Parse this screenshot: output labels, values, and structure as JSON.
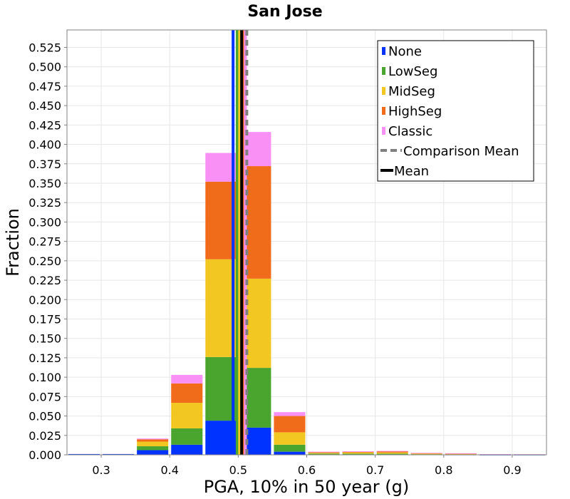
{
  "chart_data": {
    "type": "bar",
    "stacked": true,
    "title": "San Jose",
    "xlabel": "PGA, 10% in 50 year (g)",
    "ylabel": "Fraction",
    "xlim": [
      0.25,
      0.95
    ],
    "ylim": [
      0,
      0.5475
    ],
    "xticks": [
      "0.3",
      "0.4",
      "0.5",
      "0.6",
      "0.7",
      "0.8",
      "0.9"
    ],
    "yticks": [
      "0.000",
      "0.025",
      "0.050",
      "0.075",
      "0.100",
      "0.125",
      "0.150",
      "0.175",
      "0.200",
      "0.225",
      "0.250",
      "0.275",
      "0.300",
      "0.325",
      "0.350",
      "0.375",
      "0.400",
      "0.425",
      "0.450",
      "0.475",
      "0.500",
      "0.525"
    ],
    "grid": true,
    "legend_position": "top-right",
    "bin_width": 0.05,
    "bin_centers": [
      0.275,
      0.325,
      0.375,
      0.425,
      0.475,
      0.525,
      0.575,
      0.625,
      0.675,
      0.725,
      0.775,
      0.825,
      0.875,
      0.925
    ],
    "series": [
      {
        "name": "None",
        "color": "#0033ff",
        "values": [
          0.001,
          0.001,
          0.006,
          0.013,
          0.044,
          0.035,
          0.004,
          0.0005,
          0.0005,
          0.0005,
          0.0003,
          0.0002,
          0.0001,
          0.0001
        ]
      },
      {
        "name": "LowSeg",
        "color": "#4aa52e",
        "values": [
          0.0,
          0.0,
          0.005,
          0.021,
          0.082,
          0.077,
          0.009,
          0.001,
          0.001,
          0.001,
          0.0005,
          0.0003,
          0.0001,
          0.0001
        ]
      },
      {
        "name": "MidSeg",
        "color": "#f2c722",
        "values": [
          0.0,
          0.0,
          0.006,
          0.033,
          0.126,
          0.115,
          0.016,
          0.001,
          0.0015,
          0.0015,
          0.0007,
          0.0005,
          0.0002,
          0.0001
        ]
      },
      {
        "name": "HighSeg",
        "color": "#f06b1a",
        "values": [
          0.0,
          0.0,
          0.003,
          0.025,
          0.1,
          0.145,
          0.021,
          0.001,
          0.001,
          0.0015,
          0.0007,
          0.0008,
          0.0002,
          0.0002
        ]
      },
      {
        "name": "Classic",
        "color": "#f990f6",
        "values": [
          0.0,
          0.0,
          0.001,
          0.011,
          0.037,
          0.044,
          0.005,
          0.0005,
          0.0005,
          0.0005,
          0.0003,
          0.0002,
          0.0003,
          0.0002
        ]
      }
    ],
    "vertical_lines": [
      {
        "series": "None",
        "x": 0.4925,
        "color": "#0033ff",
        "style": "solid"
      },
      {
        "series": "LowSeg",
        "x": 0.4985,
        "color": "#4aa52e",
        "style": "solid"
      },
      {
        "series": "MidSeg",
        "x": 0.502,
        "color": "#f2c722",
        "style": "solid"
      },
      {
        "series": "HighSeg",
        "x": 0.508,
        "color": "#f06b1a",
        "style": "solid"
      },
      {
        "series": "Classic",
        "x": 0.5105,
        "color": "#f990f6",
        "style": "solid"
      },
      {
        "series": "Mean",
        "x": 0.505,
        "color": "#000000",
        "style": "solid"
      },
      {
        "series": "Comparison Mean",
        "x": 0.5125,
        "color": "#808080",
        "style": "dashed"
      }
    ],
    "legend": [
      {
        "label": "None",
        "color": "#0033ff",
        "kind": "box"
      },
      {
        "label": "LowSeg",
        "color": "#4aa52e",
        "kind": "box"
      },
      {
        "label": "MidSeg",
        "color": "#f2c722",
        "kind": "box"
      },
      {
        "label": "HighSeg",
        "color": "#f06b1a",
        "kind": "box"
      },
      {
        "label": "Classic",
        "color": "#f990f6",
        "kind": "box"
      },
      {
        "label": "Comparison Mean",
        "color": "#808080",
        "kind": "dashed"
      },
      {
        "label": "Mean",
        "color": "#000000",
        "kind": "line"
      }
    ]
  }
}
